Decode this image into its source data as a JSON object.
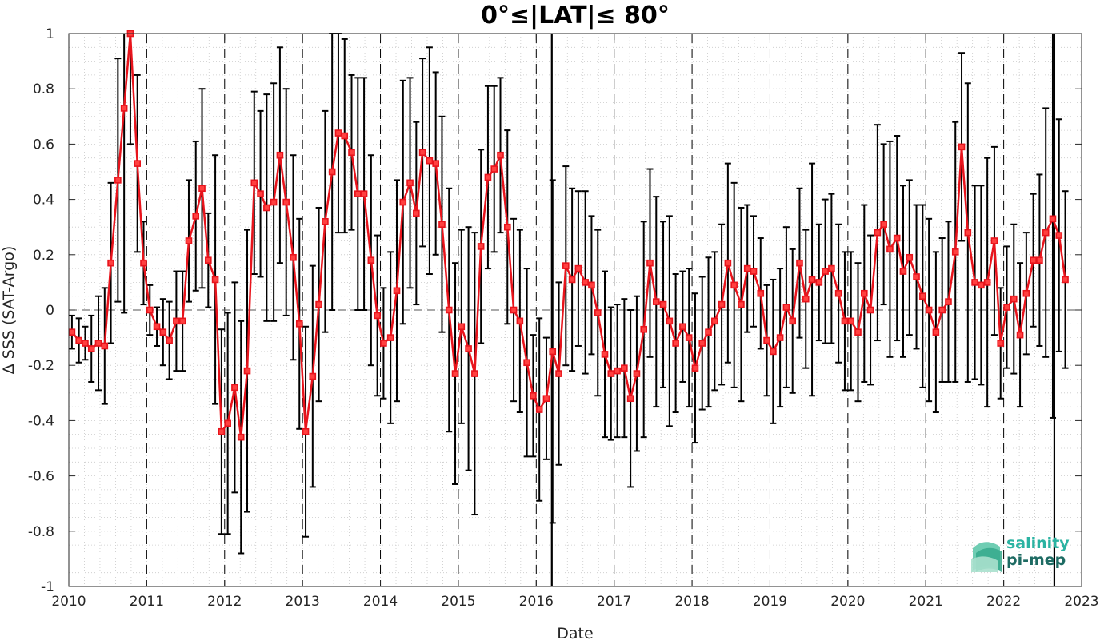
{
  "chart_data": {
    "type": "line",
    "title": "0°≤|LAT|≤ 80°",
    "xlabel": "Date",
    "ylabel": "Δ SSS (SAT-Argo)",
    "xlim": [
      2010,
      2023
    ],
    "ylim": [
      -1,
      1
    ],
    "x_ticks": [
      "2010",
      "2011",
      "2012",
      "2013",
      "2014",
      "2015",
      "2016",
      "2017",
      "2018",
      "2019",
      "2020",
      "2021",
      "2022",
      "2023"
    ],
    "y_ticks": [
      "-1",
      "-0.8",
      "-0.6",
      "-0.4",
      "-0.2",
      "0",
      "0.2",
      "0.4",
      "0.6",
      "0.8",
      "1"
    ],
    "grid": "minor dotted",
    "reference_line": 0,
    "marker": "square",
    "line_color": "#e8141c",
    "errorbar_color": "#000000",
    "solid_vertical_line_x": [
      2016.2,
      2022.65
    ],
    "series": [
      {
        "x": [
          2010.04,
          2010.13,
          2010.21,
          2010.29,
          2010.38,
          2010.46,
          2010.54,
          2010.63,
          2010.71,
          2010.79,
          2010.88,
          2010.96,
          2011.04,
          2011.13,
          2011.21,
          2011.29,
          2011.38,
          2011.46,
          2011.54,
          2011.63,
          2011.71,
          2011.79,
          2011.88,
          2011.96,
          2012.04,
          2012.13,
          2012.21,
          2012.29,
          2012.38,
          2012.46,
          2012.54,
          2012.63,
          2012.71,
          2012.79,
          2012.88,
          2012.96,
          2013.04,
          2013.13,
          2013.21,
          2013.29,
          2013.38,
          2013.46,
          2013.54,
          2013.63,
          2013.71,
          2013.79,
          2013.88,
          2013.96,
          2014.04,
          2014.13,
          2014.21,
          2014.29,
          2014.38,
          2014.46,
          2014.54,
          2014.63,
          2014.71,
          2014.79,
          2014.88,
          2014.96,
          2015.04,
          2015.13,
          2015.21,
          2015.29,
          2015.38,
          2015.46,
          2015.54,
          2015.63,
          2015.71,
          2015.79,
          2015.88,
          2015.96,
          2016.04,
          2016.13,
          2016.21,
          2016.29,
          2016.38,
          2016.46,
          2016.54,
          2016.63,
          2016.71,
          2016.79,
          2016.88,
          2016.96,
          2017.04,
          2017.13,
          2017.21,
          2017.29,
          2017.38,
          2017.46,
          2017.54,
          2017.63,
          2017.71,
          2017.79,
          2017.88,
          2017.96,
          2018.04,
          2018.13,
          2018.21,
          2018.29,
          2018.38,
          2018.46,
          2018.54,
          2018.63,
          2018.71,
          2018.79,
          2018.88,
          2018.96,
          2019.04,
          2019.13,
          2019.21,
          2019.29,
          2019.38,
          2019.46,
          2019.54,
          2019.63,
          2019.71,
          2019.79,
          2019.88,
          2019.96,
          2020.04,
          2020.13,
          2020.21,
          2020.29,
          2020.38,
          2020.46,
          2020.54,
          2020.63,
          2020.71,
          2020.79,
          2020.88,
          2020.96,
          2021.04,
          2021.13,
          2021.21,
          2021.29,
          2021.38,
          2021.46,
          2021.54,
          2021.63,
          2021.71,
          2021.79,
          2021.88,
          2021.96,
          2022.04,
          2022.13,
          2022.21,
          2022.29,
          2022.38,
          2022.46,
          2022.54,
          2022.63,
          2022.71,
          2022.79
        ],
        "y": [
          -0.08,
          -0.11,
          -0.12,
          -0.14,
          -0.12,
          -0.13,
          0.17,
          0.47,
          0.73,
          1.0,
          0.53,
          0.17,
          0.0,
          -0.06,
          -0.08,
          -0.11,
          -0.04,
          -0.04,
          0.25,
          0.34,
          0.44,
          0.18,
          0.11,
          -0.44,
          -0.41,
          -0.28,
          -0.46,
          -0.22,
          0.46,
          0.42,
          0.37,
          0.39,
          0.56,
          0.39,
          0.19,
          -0.05,
          -0.44,
          -0.24,
          0.02,
          0.32,
          0.5,
          0.64,
          0.63,
          0.57,
          0.42,
          0.42,
          0.18,
          -0.02,
          -0.12,
          -0.1,
          0.07,
          0.39,
          0.46,
          0.35,
          0.57,
          0.54,
          0.53,
          0.31,
          0.0,
          -0.23,
          -0.06,
          -0.14,
          -0.23,
          0.23,
          0.48,
          0.51,
          0.56,
          0.3,
          0.0,
          -0.04,
          -0.19,
          -0.31,
          -0.36,
          -0.32,
          -0.15,
          -0.23,
          0.16,
          0.11,
          0.15,
          0.1,
          0.09,
          -0.01,
          -0.16,
          -0.23,
          -0.22,
          -0.21,
          -0.32,
          -0.23,
          -0.07,
          0.17,
          0.03,
          0.02,
          -0.04,
          -0.12,
          -0.06,
          -0.1,
          -0.21,
          -0.12,
          -0.08,
          -0.04,
          0.02,
          0.17,
          0.09,
          0.02,
          0.15,
          0.14,
          0.06,
          -0.11,
          -0.15,
          -0.1,
          0.01,
          -0.04,
          0.17,
          0.04,
          0.11,
          0.1,
          0.14,
          0.15,
          0.06,
          -0.04,
          -0.04,
          -0.08,
          0.06,
          0.0,
          0.28,
          0.31,
          0.22,
          0.26,
          0.14,
          0.19,
          0.12,
          0.05,
          0.0,
          -0.08,
          0.0,
          0.03,
          0.21,
          0.59,
          0.28,
          0.1,
          0.09,
          0.1,
          0.25,
          -0.12,
          0.01,
          0.04,
          -0.09,
          0.06,
          0.18,
          0.18,
          0.28,
          0.33,
          0.27,
          0.11
        ],
        "err": [
          0.06,
          0.08,
          0.06,
          0.12,
          0.17,
          0.21,
          0.29,
          0.44,
          0.74,
          0.4,
          0.32,
          0.15,
          0.09,
          0.07,
          0.12,
          0.14,
          0.18,
          0.18,
          0.22,
          0.27,
          0.36,
          0.17,
          0.45,
          0.37,
          0.4,
          0.38,
          0.42,
          0.51,
          0.33,
          0.3,
          0.41,
          0.43,
          0.39,
          0.41,
          0.37,
          0.38,
          0.38,
          0.4,
          0.35,
          0.4,
          0.5,
          0.36,
          0.35,
          0.28,
          0.42,
          0.42,
          0.38,
          0.29,
          0.2,
          0.31,
          0.4,
          0.44,
          0.38,
          0.33,
          0.34,
          0.41,
          0.33,
          0.39,
          0.44,
          0.4,
          0.35,
          0.44,
          0.51,
          0.35,
          0.33,
          0.3,
          0.28,
          0.35,
          0.33,
          0.33,
          0.34,
          0.22,
          0.33,
          0.22,
          0.62,
          0.33,
          0.36,
          0.33,
          0.28,
          0.33,
          0.25,
          0.3,
          0.3,
          0.24,
          0.24,
          0.25,
          0.32,
          0.28,
          0.39,
          0.34,
          0.38,
          0.3,
          0.38,
          0.25,
          0.2,
          0.25,
          0.27,
          0.24,
          0.27,
          0.25,
          0.29,
          0.36,
          0.37,
          0.35,
          0.23,
          0.2,
          0.2,
          0.2,
          0.26,
          0.25,
          0.29,
          0.26,
          0.27,
          0.25,
          0.42,
          0.21,
          0.26,
          0.27,
          0.25,
          0.25,
          0.25,
          0.25,
          0.32,
          0.27,
          0.39,
          0.29,
          0.39,
          0.37,
          0.31,
          0.28,
          0.26,
          0.33,
          0.33,
          0.29,
          0.26,
          0.29,
          0.47,
          0.34,
          0.54,
          0.35,
          0.36,
          0.45,
          0.34,
          0.2,
          0.22,
          0.27,
          0.26,
          0.22,
          0.24,
          0.31,
          0.45,
          0.72,
          0.42,
          0.32
        ]
      }
    ],
    "logo": {
      "line1": "salinity",
      "line2": "pi-mep",
      "color1": "#2bb3a2",
      "color2": "#1e6b63"
    }
  }
}
